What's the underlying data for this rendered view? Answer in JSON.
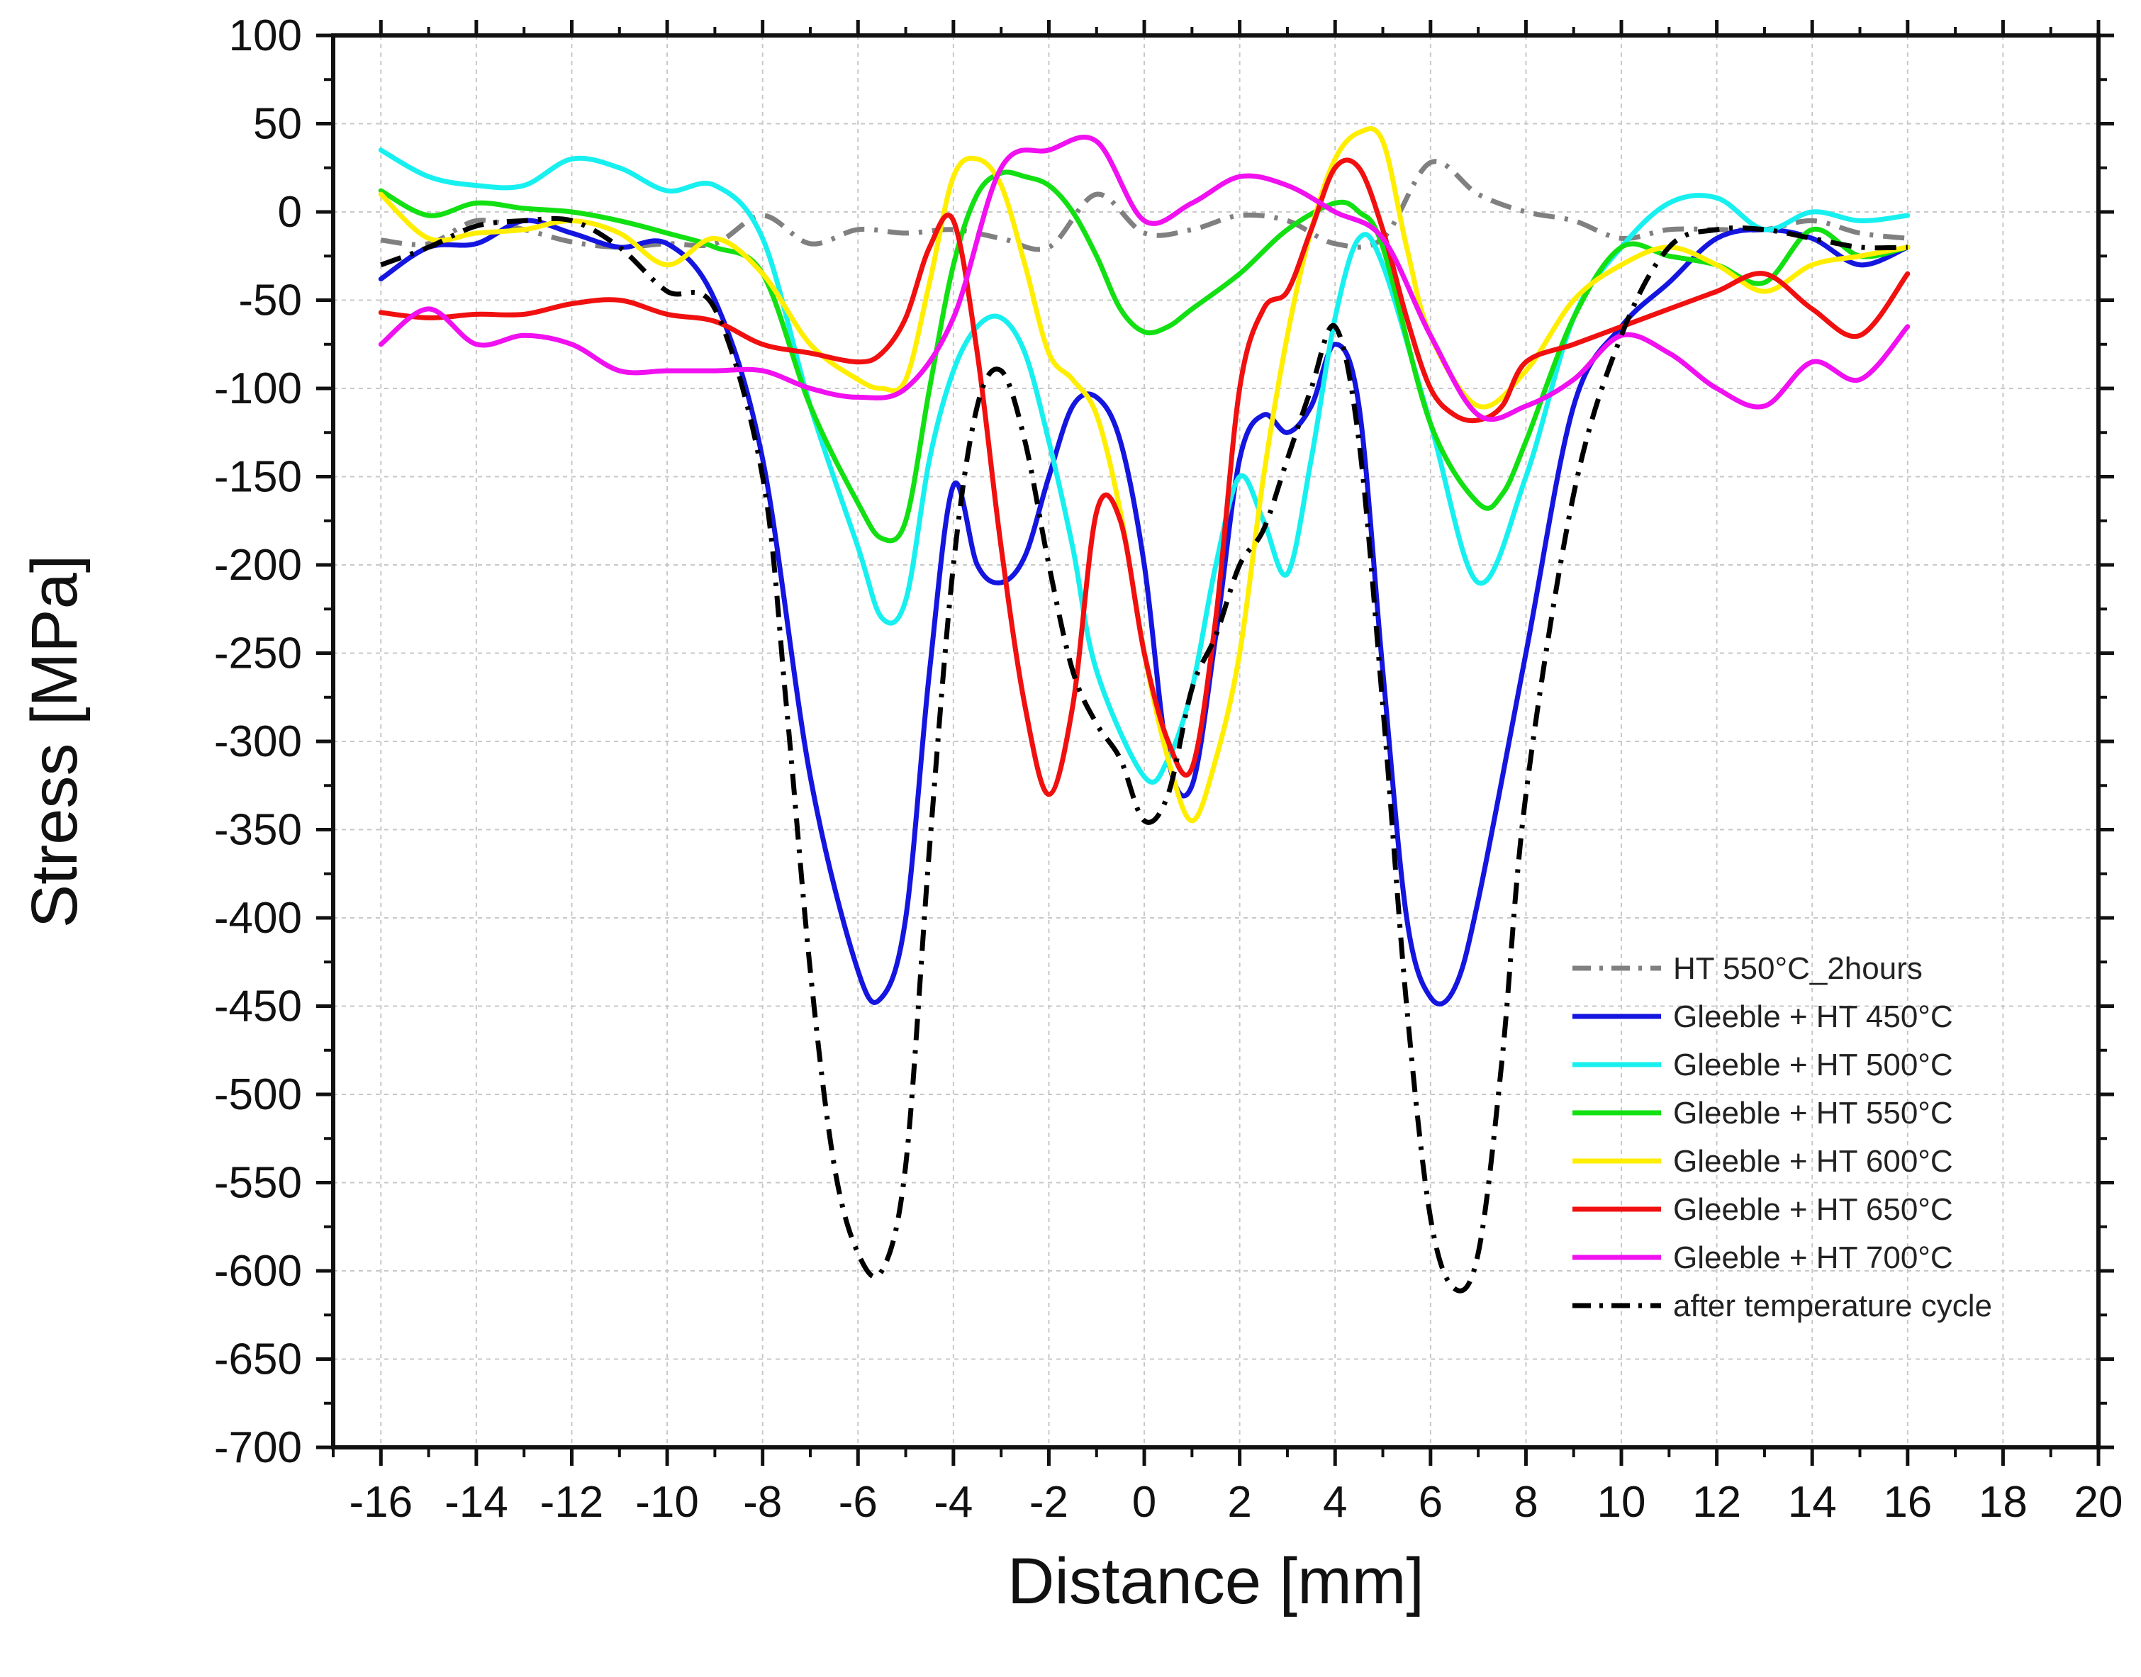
{
  "chart_data": {
    "type": "line",
    "title": "",
    "xlabel": "Distance [mm]",
    "ylabel": "Stress [MPa]",
    "xlim": [
      -17,
      20
    ],
    "ylim": [
      -700,
      100
    ],
    "xticks": [
      -16,
      -14,
      -12,
      -10,
      -8,
      -6,
      -4,
      -2,
      0,
      2,
      4,
      6,
      8,
      10,
      12,
      14,
      16,
      18,
      20
    ],
    "xtick_labels": [
      "-16",
      "-14",
      "-12",
      "-10",
      "-8",
      "-6",
      "-4",
      "-2",
      "0",
      "2",
      "4",
      "6",
      "8",
      "10",
      "12",
      "14",
      "16",
      "18",
      "20"
    ],
    "yticks": [
      100,
      50,
      0,
      -50,
      -100,
      -150,
      -200,
      -250,
      -300,
      -350,
      -400,
      -450,
      -500,
      -550,
      -600,
      -650,
      -700
    ],
    "ytick_labels": [
      "100",
      "50",
      "0",
      "-50",
      "-100",
      "-150",
      "-200",
      "-250",
      "-300",
      "-350",
      "-400",
      "-450",
      "-500",
      "-550",
      "-600",
      "-650",
      "-700"
    ],
    "grid": true,
    "legend_position": "bottom-right",
    "series": [
      {
        "name": "HT 550°C_2hours",
        "color": "#808080",
        "dash": "dashdot",
        "x": [
          -16,
          -15,
          -14,
          -13,
          -12,
          -11,
          -10,
          -9,
          -8,
          -7,
          -6,
          -5,
          -4,
          -3,
          -2,
          -1,
          0,
          1,
          2,
          3,
          4,
          5,
          6,
          7,
          8,
          9,
          10,
          11,
          12,
          13,
          14,
          15,
          16
        ],
        "y": [
          -16,
          -18,
          -5,
          -10,
          -17,
          -20,
          -18,
          -18,
          -2,
          -18,
          -10,
          -12,
          -10,
          -15,
          -20,
          10,
          -12,
          -10,
          -2,
          -5,
          -18,
          -15,
          28,
          10,
          0,
          -5,
          -15,
          -10,
          -10,
          -10,
          -5,
          -12,
          -15
        ]
      },
      {
        "name": "Gleeble + HT 450°C",
        "color": "#1515e0",
        "dash": "solid",
        "x": [
          -16,
          -15,
          -14,
          -13,
          -12,
          -11,
          -10,
          -9,
          -8,
          -7,
          -6,
          -5.5,
          -5,
          -4.5,
          -4,
          -3.5,
          -3,
          -2.5,
          -2,
          -1.5,
          -1,
          -0.5,
          0,
          0.5,
          1,
          1.5,
          2,
          2.5,
          3,
          3.5,
          4,
          4.5,
          5,
          5.5,
          6,
          6.5,
          7,
          8,
          9,
          10,
          11,
          12,
          13,
          14,
          15,
          16
        ],
        "y": [
          -38,
          -20,
          -18,
          -5,
          -12,
          -20,
          -18,
          -50,
          -140,
          -320,
          -430,
          -445,
          -400,
          -260,
          -155,
          -200,
          -210,
          -195,
          -150,
          -110,
          -105,
          -130,
          -200,
          -310,
          -325,
          -240,
          -140,
          -115,
          -125,
          -110,
          -75,
          -110,
          -260,
          -400,
          -445,
          -440,
          -390,
          -250,
          -110,
          -65,
          -40,
          -15,
          -10,
          -15,
          -30,
          -20
        ]
      },
      {
        "name": "Gleeble + HT 500°C",
        "color": "#18f0f0",
        "dash": "solid",
        "x": [
          -16,
          -15,
          -14,
          -13,
          -12,
          -11,
          -10,
          -9,
          -8,
          -7,
          -6,
          -5.5,
          -5,
          -4.5,
          -4,
          -3.5,
          -3,
          -2.5,
          -2,
          -1.5,
          -1,
          0,
          0.5,
          1,
          1.5,
          2,
          2.5,
          3,
          3.5,
          4,
          4.5,
          5,
          6,
          7,
          8,
          9,
          10,
          11,
          12,
          13,
          14,
          15,
          16
        ],
        "y": [
          35,
          20,
          15,
          15,
          30,
          25,
          12,
          15,
          -15,
          -110,
          -190,
          -230,
          -220,
          -140,
          -90,
          -65,
          -60,
          -80,
          -130,
          -190,
          -260,
          -320,
          -310,
          -270,
          -200,
          -150,
          -175,
          -205,
          -140,
          -60,
          -15,
          -30,
          -120,
          -210,
          -150,
          -60,
          -20,
          5,
          8,
          -10,
          0,
          -5,
          -2
        ]
      },
      {
        "name": "Gleeble + HT 550°C",
        "color": "#12e012",
        "dash": "solid",
        "x": [
          -16,
          -15,
          -14,
          -13,
          -12,
          -11,
          -10,
          -9,
          -8,
          -7,
          -6,
          -5.5,
          -5,
          -4.5,
          -4,
          -3.5,
          -3,
          -2.5,
          -2,
          -1.5,
          -1,
          -0.5,
          0,
          0.5,
          1,
          2,
          3,
          4,
          4.5,
          5,
          6,
          7,
          7.5,
          8,
          9,
          10,
          11,
          12,
          13,
          14,
          15,
          16
        ],
        "y": [
          12,
          -2,
          5,
          2,
          0,
          -5,
          -12,
          -20,
          -35,
          -110,
          -165,
          -185,
          -175,
          -100,
          -30,
          10,
          22,
          20,
          15,
          0,
          -25,
          -55,
          -68,
          -65,
          -55,
          -35,
          -10,
          5,
          0,
          -20,
          -120,
          -165,
          -160,
          -130,
          -60,
          -20,
          -25,
          -30,
          -40,
          -10,
          -25,
          -20
        ]
      },
      {
        "name": "Gleeble + HT 600°C",
        "color": "#ffee00",
        "dash": "solid",
        "x": [
          -16,
          -15,
          -14,
          -13,
          -12,
          -11,
          -10,
          -9,
          -8,
          -7,
          -6,
          -5.5,
          -5,
          -4.5,
          -4,
          -3.5,
          -3,
          -2.5,
          -2,
          -1.5,
          -1,
          -0.5,
          0,
          0.5,
          1,
          1.5,
          2,
          2.5,
          3,
          3.5,
          4,
          4.5,
          5,
          5.5,
          6,
          7,
          8,
          9,
          10,
          11,
          12,
          13,
          14,
          15,
          16
        ],
        "y": [
          10,
          -15,
          -12,
          -10,
          -5,
          -12,
          -30,
          -15,
          -35,
          -75,
          -95,
          -100,
          -95,
          -40,
          20,
          30,
          15,
          -30,
          -80,
          -95,
          -115,
          -170,
          -250,
          -310,
          -345,
          -310,
          -250,
          -150,
          -70,
          -10,
          30,
          45,
          40,
          -20,
          -70,
          -110,
          -90,
          -50,
          -30,
          -20,
          -30,
          -45,
          -30,
          -25,
          -20
        ]
      },
      {
        "name": "Gleeble + HT 650°C",
        "color": "#f01010",
        "dash": "solid",
        "x": [
          -16,
          -15,
          -14,
          -13,
          -12,
          -11,
          -10,
          -9,
          -8,
          -7,
          -6,
          -5.5,
          -5,
          -4.5,
          -4,
          -3.5,
          -3,
          -2.5,
          -2,
          -1.5,
          -1,
          -0.5,
          0,
          0.5,
          1,
          1.5,
          2,
          2.5,
          3,
          3.5,
          4,
          4.5,
          5,
          5.5,
          6,
          6.5,
          7,
          7.5,
          8,
          9,
          10,
          11,
          12,
          13,
          14,
          15,
          16
        ],
        "y": [
          -57,
          -60,
          -58,
          -58,
          -52,
          -50,
          -58,
          -62,
          -75,
          -80,
          -85,
          -80,
          -60,
          -20,
          -5,
          -80,
          -190,
          -280,
          -330,
          -280,
          -170,
          -175,
          -250,
          -300,
          -315,
          -230,
          -100,
          -55,
          -45,
          -10,
          25,
          25,
          -10,
          -60,
          -100,
          -115,
          -118,
          -110,
          -85,
          -75,
          -65,
          -55,
          -45,
          -35,
          -55,
          -70,
          -35
        ]
      },
      {
        "name": "Gleeble + HT 700°C",
        "color": "#f010f0",
        "dash": "solid",
        "x": [
          -16,
          -15,
          -14,
          -13,
          -12,
          -11,
          -10,
          -9,
          -8,
          -7,
          -6,
          -5,
          -4,
          -3,
          -2,
          -1,
          0,
          1,
          2,
          3,
          4,
          5,
          6,
          7,
          8,
          9,
          10,
          11,
          12,
          13,
          14,
          15,
          16
        ],
        "y": [
          -75,
          -55,
          -75,
          -70,
          -75,
          -90,
          -90,
          -90,
          -90,
          -100,
          -105,
          -100,
          -60,
          25,
          35,
          40,
          -5,
          5,
          20,
          15,
          0,
          -15,
          -70,
          -115,
          -110,
          -95,
          -70,
          -80,
          -100,
          -110,
          -85,
          -95,
          -65
        ]
      },
      {
        "name": "after temperature cycle",
        "color": "#000000",
        "dash": "dashdot",
        "x": [
          -16,
          -15,
          -14,
          -13,
          -12,
          -11,
          -10,
          -9,
          -8,
          -7.5,
          -7,
          -6.5,
          -6,
          -5.5,
          -5,
          -4.5,
          -4,
          -3.5,
          -3,
          -2.5,
          -2,
          -1.5,
          -1,
          -0.5,
          0,
          0.5,
          1,
          1.5,
          2,
          2.5,
          3,
          3.5,
          4,
          4.5,
          5,
          5.5,
          6,
          6.5,
          7,
          7.5,
          8,
          9,
          10,
          11,
          12,
          13,
          14,
          15,
          16
        ],
        "y": [
          -30,
          -20,
          -8,
          -5,
          -5,
          -20,
          -45,
          -55,
          -150,
          -280,
          -430,
          -540,
          -590,
          -600,
          -540,
          -360,
          -200,
          -110,
          -90,
          -130,
          -200,
          -260,
          -290,
          -310,
          -345,
          -330,
          -270,
          -240,
          -200,
          -180,
          -140,
          -100,
          -65,
          -130,
          -280,
          -450,
          -570,
          -610,
          -590,
          -480,
          -330,
          -160,
          -70,
          -20,
          -10,
          -10,
          -15,
          -20,
          -20
        ]
      }
    ]
  }
}
